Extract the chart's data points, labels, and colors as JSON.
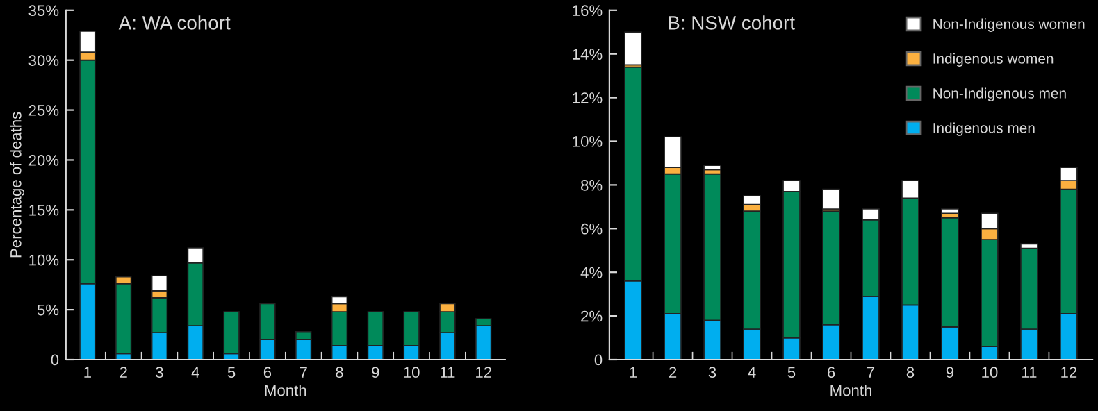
{
  "chart_data": [
    {
      "type": "bar",
      "stacked": true,
      "title": "A: WA cohort",
      "xlabel": "Month",
      "ylabel": "Percentage of deaths",
      "categories": [
        "1",
        "2",
        "3",
        "4",
        "5",
        "6",
        "7",
        "8",
        "9",
        "10",
        "11",
        "12"
      ],
      "ylim": [
        0,
        35
      ],
      "yticks": [
        {
          "value": 0,
          "label": "0"
        },
        {
          "value": 5,
          "label": "5%"
        },
        {
          "value": 10,
          "label": "10%"
        },
        {
          "value": 15,
          "label": "15%"
        },
        {
          "value": 20,
          "label": "20%"
        },
        {
          "value": 25,
          "label": "25%"
        },
        {
          "value": 30,
          "label": "30%"
        },
        {
          "value": 35,
          "label": "35%"
        }
      ],
      "grid": false,
      "legend": false,
      "series": [
        {
          "color": "#00aeef",
          "values": [
            7.6,
            0.6,
            2.7,
            3.4,
            0.6,
            2.0,
            2.0,
            1.4,
            1.4,
            1.4,
            2.7,
            3.4
          ]
        },
        {
          "color": "#008a5a",
          "values": [
            22.4,
            7.0,
            3.5,
            6.3,
            4.2,
            3.6,
            0.8,
            3.4,
            3.4,
            3.4,
            2.1,
            0.7
          ]
        },
        {
          "color": "#fbb040",
          "values": [
            0.8,
            0.7,
            0.7,
            null,
            null,
            null,
            null,
            0.8,
            null,
            null,
            0.8,
            null
          ]
        },
        {
          "color": "#ffffff",
          "values": [
            2.1,
            null,
            1.5,
            1.5,
            null,
            null,
            null,
            0.7,
            null,
            null,
            null,
            null
          ]
        }
      ]
    },
    {
      "type": "bar",
      "stacked": true,
      "title": "B: NSW cohort",
      "xlabel": "Month",
      "categories": [
        "1",
        "2",
        "3",
        "4",
        "5",
        "6",
        "7",
        "8",
        "9",
        "10",
        "11",
        "12"
      ],
      "ylim": [
        0,
        16
      ],
      "yticks": [
        {
          "value": 0,
          "label": "0"
        },
        {
          "value": 2,
          "label": "2%"
        },
        {
          "value": 4,
          "label": "4%"
        },
        {
          "value": 6,
          "label": "6%"
        },
        {
          "value": 8,
          "label": "8%"
        },
        {
          "value": 10,
          "label": "10%"
        },
        {
          "value": 12,
          "label": "12%"
        },
        {
          "value": 14,
          "label": "14%"
        },
        {
          "value": 16,
          "label": "16%"
        }
      ],
      "grid": false,
      "legend": "top right",
      "series": [
        {
          "name": "Indigenous men",
          "color": "#00aeef",
          "values": [
            3.6,
            2.1,
            1.8,
            1.4,
            1.0,
            1.6,
            2.9,
            2.5,
            1.5,
            0.6,
            1.4,
            2.1
          ]
        },
        {
          "name": "Non-Indigenous men",
          "color": "#008a5a",
          "values": [
            9.8,
            6.4,
            6.7,
            5.4,
            6.7,
            5.2,
            3.5,
            4.9,
            5.0,
            4.9,
            3.7,
            5.7
          ]
        },
        {
          "name": "Indigenous women",
          "color": "#fbb040",
          "values": [
            0.1,
            0.3,
            0.2,
            0.3,
            null,
            0.1,
            null,
            null,
            0.2,
            0.5,
            null,
            0.4
          ]
        },
        {
          "name": "Non-Indigenous women",
          "color": "#ffffff",
          "values": [
            1.5,
            1.4,
            0.2,
            0.4,
            0.5,
            0.9,
            0.5,
            0.8,
            0.2,
            0.7,
            0.2,
            0.6
          ]
        }
      ]
    }
  ]
}
